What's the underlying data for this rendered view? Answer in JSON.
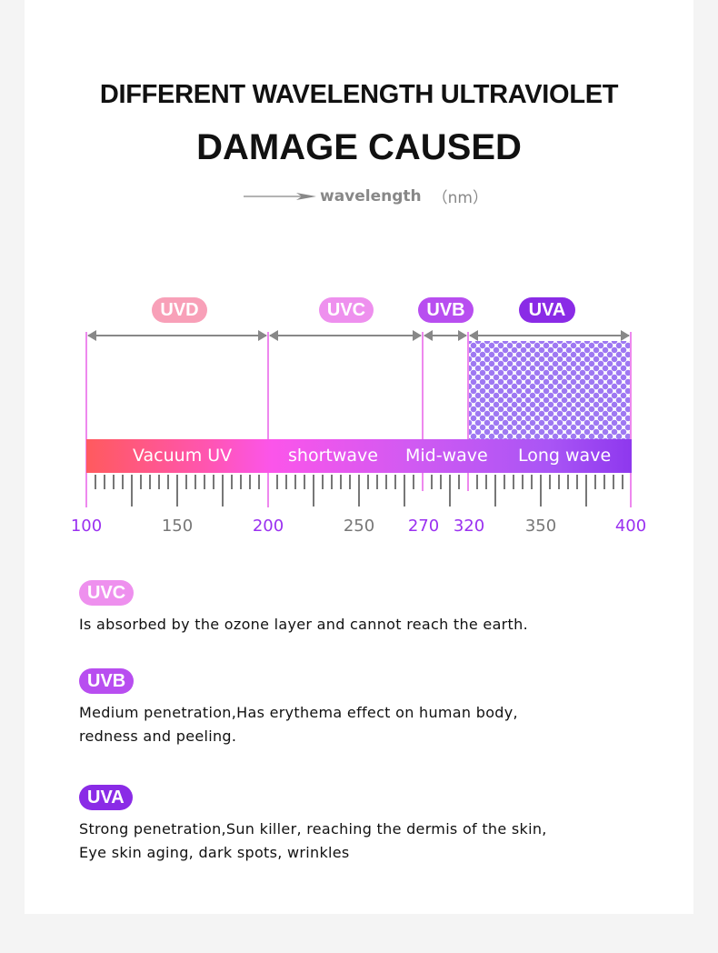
{
  "title_line1": "DIFFERENT WAVELENGTH ULTRAVIOLET",
  "title_line2": "DAMAGE CAUSED",
  "axis_label": {
    "word": "wavelength",
    "unit": "（nm）"
  },
  "colors": {
    "UVD": "#f8a0b8",
    "UVC": "#ee90ee",
    "UVB": "#b84ef0",
    "UVA": "#8a2be6",
    "boundary": "#ee88ee",
    "accent_label": "#9a30f0",
    "gray_label": "#777777"
  },
  "bands": [
    {
      "name": "UVD",
      "range": [
        100,
        200
      ],
      "bar_label": "Vacuum UV"
    },
    {
      "name": "UVC",
      "range": [
        200,
        270
      ],
      "bar_label": "shortwave"
    },
    {
      "name": "UVB",
      "range": [
        270,
        320
      ],
      "bar_label": "Mid-wave"
    },
    {
      "name": "UVA",
      "range": [
        320,
        400
      ],
      "bar_label": "Long wave"
    }
  ],
  "scale_labels": [
    {
      "v": "100",
      "accent": true
    },
    {
      "v": "150",
      "accent": false
    },
    {
      "v": "200",
      "accent": true
    },
    {
      "v": "250",
      "accent": false
    },
    {
      "v": "270",
      "accent": true
    },
    {
      "v": "320",
      "accent": true
    },
    {
      "v": "350",
      "accent": false
    },
    {
      "v": "400",
      "accent": true
    }
  ],
  "descriptions": [
    {
      "badge": "UVC",
      "lines": [
        "Is absorbed by the ozone layer and cannot reach the earth."
      ]
    },
    {
      "badge": "UVB",
      "lines": [
        "Medium penetration,Has erythema effect on human body,",
        "redness and peeling."
      ]
    },
    {
      "badge": "UVA",
      "lines": [
        "Strong penetration,Sun killer, reaching the dermis of the skin,",
        "Eye skin aging, dark spots, wrinkles"
      ]
    }
  ]
}
